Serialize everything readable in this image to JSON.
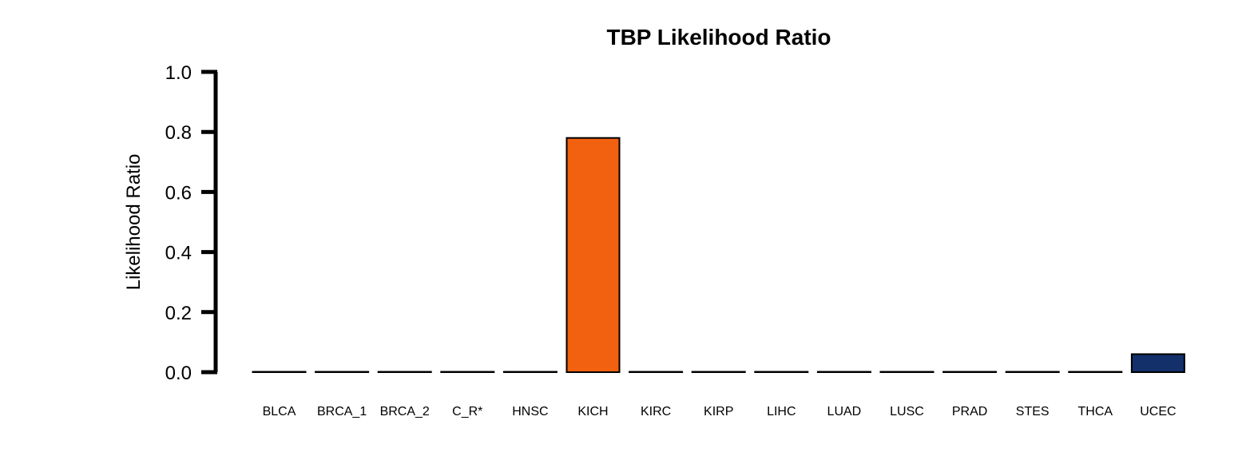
{
  "chart_data": {
    "type": "bar",
    "title": "TBP Likelihood Ratio",
    "xlabel": "",
    "ylabel": "Likelihood Ratio",
    "ylim": [
      0,
      1
    ],
    "yticks": [
      "0.0",
      "0.2",
      "0.4",
      "0.6",
      "0.8",
      "1.0"
    ],
    "ytick_values": [
      0,
      0.2,
      0.4,
      0.6,
      0.8,
      1.0
    ],
    "grid": false,
    "categories": [
      "BLCA",
      "BRCA_1",
      "BRCA_2",
      "C_R*",
      "HNSC",
      "KICH",
      "KIRC",
      "KIRP",
      "LIHC",
      "LUAD",
      "LUSC",
      "PRAD",
      "STES",
      "THCA",
      "UCEC"
    ],
    "values": [
      0,
      0,
      0,
      0,
      0,
      0.78,
      0,
      0,
      0,
      0,
      0,
      0,
      0,
      0,
      0.06
    ],
    "colors": [
      "#ffffff",
      "#ffffff",
      "#ffffff",
      "#ffffff",
      "#ffffff",
      "#f2610f",
      "#ffffff",
      "#ffffff",
      "#ffffff",
      "#ffffff",
      "#ffffff",
      "#ffffff",
      "#ffffff",
      "#ffffff",
      "#13306a"
    ]
  }
}
